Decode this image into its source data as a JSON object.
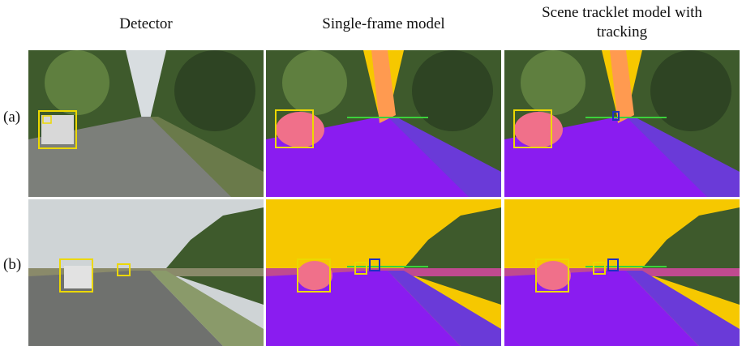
{
  "columns": [
    {
      "header": "Detector"
    },
    {
      "header": "Single-frame model"
    },
    {
      "header": "Scene tracklet model with tracking"
    }
  ],
  "rows": [
    {
      "label": "(a)"
    },
    {
      "label": "(b)"
    }
  ]
}
